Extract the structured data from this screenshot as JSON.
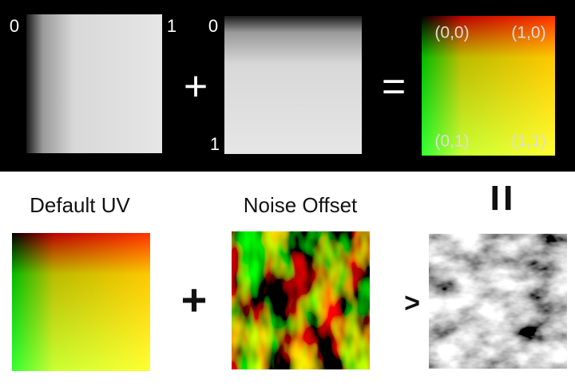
{
  "top": {
    "u_panel": {
      "start": "0",
      "end": "1"
    },
    "plus": "+",
    "v_panel": {
      "start": "0",
      "end": "1"
    },
    "equals": "=",
    "uv_panel": {
      "corners": [
        "(0,0)",
        "(1,0)",
        "(0,1)",
        "(1,1)"
      ]
    }
  },
  "bottom": {
    "default_uv": {
      "label": "Default UV"
    },
    "plus": "+",
    "noise_offset": {
      "label": "Noise Offset"
    },
    "equals": "=",
    "arrow": ">"
  }
}
